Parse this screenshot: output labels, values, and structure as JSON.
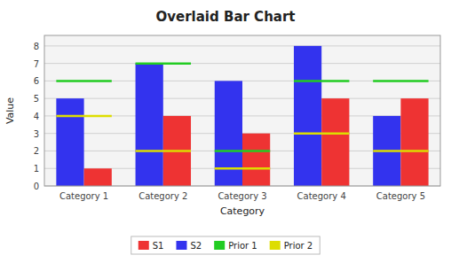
{
  "chart_data": {
    "type": "bar",
    "title": "Overlaid Bar Chart",
    "x_label": "Category",
    "y_label": "Value",
    "categories": [
      "Category 1",
      "Category 2",
      "Category 3",
      "Category 4",
      "Category 5"
    ],
    "series": [
      {
        "name": "S1",
        "type": "bar",
        "color": "#EE3333",
        "values": [
          1,
          4,
          3,
          5,
          5
        ]
      },
      {
        "name": "S2",
        "type": "bar",
        "color": "#3333EE",
        "values": [
          5,
          7,
          6,
          8,
          4
        ]
      },
      {
        "name": "Prior 1",
        "type": "hline",
        "color": "#22CC22",
        "values": [
          6,
          7,
          2,
          6,
          6
        ]
      },
      {
        "name": "Prior 2",
        "type": "hline",
        "color": "#DDDD00",
        "values": [
          4,
          2,
          1,
          3,
          2
        ]
      }
    ],
    "ylim": [
      0,
      8.6
    ],
    "yticks": [
      0,
      1,
      2,
      3,
      4,
      5,
      6,
      7,
      8
    ],
    "grid": true,
    "legend": "bottom"
  }
}
